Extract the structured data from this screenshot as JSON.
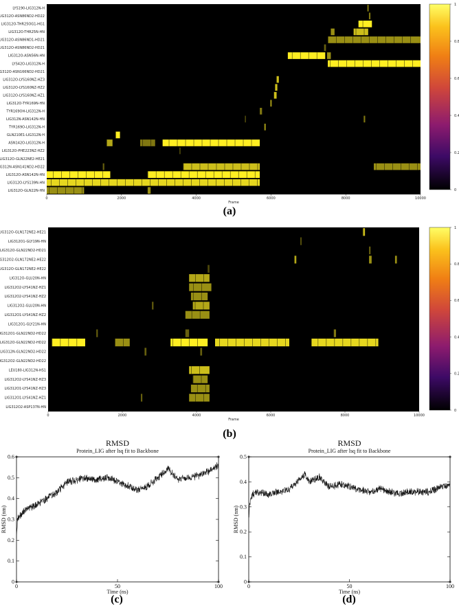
{
  "colors": {
    "background": "#000000",
    "band": "#ffee22",
    "rmsd_line": "#111111",
    "colorbar_stops": [
      "#000000",
      "#3d0a66",
      "#8d1b6e",
      "#d0473a",
      "#f07f14",
      "#fbc21c",
      "#ffff66"
    ]
  },
  "panel_labels": [
    "(a)",
    "(b)",
    "(c)",
    "(d)"
  ],
  "chart_data": [
    {
      "type": "heatmap",
      "panel": "(a)",
      "xlabel": "Frame",
      "xlim": [
        0,
        10000
      ],
      "xticks": [
        0,
        2000,
        4000,
        6000,
        8000,
        10000
      ],
      "colorbar": {
        "range": [
          0,
          1
        ],
        "ticks": [
          "0",
          "0.2",
          "0.4",
          "0.6",
          "0.8",
          "1"
        ]
      },
      "rows": [
        {
          "name": "LYS190-LIG312N-H",
          "segments": [
            [
              8580,
              8610,
              0.6
            ]
          ]
        },
        {
          "name": "LIG312O-ASN86ND2-HD22",
          "segments": [
            [
              8620,
              8660,
              0.5
            ]
          ]
        },
        {
          "name": "LIG312O-THR25OG1-HG1",
          "segments": [
            [
              8340,
              8700,
              1.0
            ]
          ]
        },
        {
          "name": "LIG312O-THR25N-HN",
          "segments": [
            [
              8210,
              8600,
              0.8
            ],
            [
              7600,
              7700,
              0.6
            ]
          ]
        },
        {
          "name": "LIG312O-ASN86ND1-HD21",
          "segments": [
            [
              7520,
              10000,
              0.6
            ]
          ]
        },
        {
          "name": "LIG312O-ASN86ND2-HD21",
          "segments": [
            [
              7420,
              7470,
              0.4
            ]
          ]
        },
        {
          "name": "LIG312O-ASN56N-HN",
          "segments": [
            [
              6450,
              7450,
              1.0
            ],
            [
              7500,
              7600,
              0.6
            ]
          ]
        },
        {
          "name": "LYS42O-LIG312N-H",
          "segments": [
            [
              7520,
              10000,
              1.0
            ]
          ]
        },
        {
          "name": "LIG312O-ASN166ND2-HD21",
          "segments": []
        },
        {
          "name": "LIG312O-LYS160NZ-HZ3",
          "segments": [
            [
              6150,
              6210,
              0.8
            ]
          ]
        },
        {
          "name": "LIG312O-LYS160NZ-HZ2",
          "segments": [
            [
              6110,
              6170,
              0.8
            ]
          ]
        },
        {
          "name": "LIG312O-LYS160NZ-HZ1",
          "segments": [
            [
              6080,
              6150,
              0.8
            ]
          ]
        },
        {
          "name": "LIG312O-TYR169N-HN",
          "segments": [
            [
              5980,
              6020,
              0.6
            ]
          ]
        },
        {
          "name": "TYR169OH-LIG312N-H",
          "segments": [
            [
              5700,
              5760,
              0.5
            ]
          ]
        },
        {
          "name": "LIG312N-ASN142N-HN",
          "segments": [
            [
              8480,
              8520,
              0.5
            ],
            [
              5300,
              5330,
              0.3
            ]
          ]
        },
        {
          "name": "TYR169O-LIG312N-H",
          "segments": [
            [
              5820,
              5860,
              0.6
            ]
          ]
        },
        {
          "name": "GLN210E1-LIG312N-H",
          "segments": [
            [
              1840,
              1960,
              1.0
            ]
          ]
        },
        {
          "name": "ASN142O-LIG312N-H",
          "segments": [
            [
              3100,
              5700,
              1.0
            ],
            [
              1600,
              1760,
              0.7
            ],
            [
              2500,
              2900,
              0.5
            ]
          ]
        },
        {
          "name": "LIG312O-PHE223NZ-HZ2",
          "segments": [
            [
              3550,
              3580,
              0.3
            ]
          ]
        },
        {
          "name": "LIG312O-GLN22NE2-HE21",
          "segments": []
        },
        {
          "name": "LIG312N-ASN141ND2-HD22",
          "segments": [
            [
              3650,
              5700,
              0.8
            ],
            [
              8750,
              10000,
              0.6
            ],
            [
              1500,
              1540,
              0.4
            ]
          ]
        },
        {
          "name": "LIG312O-ASN142N-HN",
          "segments": [
            [
              0,
              1700,
              1.0
            ],
            [
              2700,
              5700,
              1.0
            ]
          ]
        },
        {
          "name": "LIG312O-LYS139N-HN",
          "segments": [
            [
              0,
              5700,
              0.9
            ]
          ]
        },
        {
          "name": "LIG312O-GLN22N-HN",
          "segments": [
            [
              0,
              1000,
              0.6
            ],
            [
              2700,
              2780,
              0.6
            ]
          ]
        }
      ]
    },
    {
      "type": "heatmap",
      "panel": "(b)",
      "xlabel": "Frame",
      "xlim": [
        0,
        10000
      ],
      "xticks": [
        0,
        2000,
        4000,
        6000,
        8000,
        10000
      ],
      "colorbar": {
        "range": [
          0,
          1
        ],
        "ticks": [
          "0",
          "0.2",
          "0.4",
          "0.6",
          "0.8",
          "1"
        ]
      },
      "rows": [
        {
          "name": "LIG312O-GLN172NE2-HE21",
          "segments": [
            [
              8480,
              8540,
              0.8
            ]
          ]
        },
        {
          "name": "LIG312O1-GLY19N-HN",
          "segments": [
            [
              6800,
              6830,
              0.4
            ]
          ]
        },
        {
          "name": "LIG312O-GLN22ND2-HD21",
          "segments": [
            [
              8650,
              8690,
              0.4
            ]
          ]
        },
        {
          "name": "LIG312O2-GLN172NE2-HE22",
          "segments": [
            [
              6640,
              6690,
              0.7
            ],
            [
              8650,
              8720,
              0.6
            ],
            [
              9350,
              9400,
              0.6
            ]
          ]
        },
        {
          "name": "LIG312O-GLN172NE2-HE22",
          "segments": [
            [
              4300,
              4350,
              0.3
            ]
          ]
        },
        {
          "name": "LIG312O-GLU20N-HN",
          "segments": [
            [
              3800,
              4350,
              0.7
            ]
          ]
        },
        {
          "name": "LIG312O2-LYS41NZ-HZ1",
          "segments": [
            [
              3800,
              4400,
              0.6
            ]
          ]
        },
        {
          "name": "LIG312O2-LYS41NZ-HZ2",
          "segments": [
            [
              3850,
              4300,
              0.6
            ]
          ]
        },
        {
          "name": "LIG312O2-GLU20N-HN",
          "segments": [
            [
              2800,
              2840,
              0.4
            ],
            [
              3900,
              4350,
              0.7
            ]
          ]
        },
        {
          "name": "LIG312O1-LYS41NZ-HZ2",
          "segments": [
            [
              3700,
              4350,
              0.6
            ]
          ]
        },
        {
          "name": "LIG312O1-GLY21N-HN",
          "segments": []
        },
        {
          "name": "LIG312O1-GLN22ND2-HD22",
          "segments": [
            [
              1300,
              1340,
              0.4
            ],
            [
              3700,
              3800,
              0.4
            ],
            [
              7700,
              7760,
              0.5
            ]
          ]
        },
        {
          "name": "LIG312O-GLN22ND2-HD22",
          "segments": [
            [
              100,
              1000,
              1.0
            ],
            [
              3300,
              4300,
              1.0
            ],
            [
              4500,
              6500,
              0.9
            ],
            [
              7100,
              8900,
              0.9
            ],
            [
              1800,
              2200,
              0.6
            ]
          ]
        },
        {
          "name": "LIG312N-GLN22ND2-HD22",
          "segments": [
            [
              2600,
              2650,
              0.4
            ],
            [
              4100,
              4150,
              0.4
            ]
          ]
        },
        {
          "name": "LIG312O2-GLN22ND2-HD22",
          "segments": []
        },
        {
          "name": "LEU180-LIG312N-HS1",
          "segments": [
            [
              3800,
              4350,
              0.8
            ]
          ]
        },
        {
          "name": "LIG312O2-LYS41NZ-HZ3",
          "segments": [
            [
              3900,
              4300,
              0.6
            ]
          ]
        },
        {
          "name": "LIG312O1-LYS41NZ-HZ3",
          "segments": [
            [
              3850,
              4350,
              0.6
            ]
          ]
        },
        {
          "name": "LIG312O1-LYS41NZ-HZ1",
          "segments": [
            [
              2500,
              2540,
              0.4
            ],
            [
              3800,
              4350,
              0.6
            ]
          ]
        },
        {
          "name": "LIG312O2-ASP137N-HN",
          "segments": []
        }
      ]
    },
    {
      "type": "line",
      "panel": "(c)",
      "title": "RMSD",
      "subtitle": "Protein_LIG after lsq fit to Backbone",
      "xlabel": "Time (ns)",
      "ylabel": "RMSD (nm)",
      "xlim": [
        0,
        100
      ],
      "ylim": [
        0,
        0.6
      ],
      "xticks": [
        "0",
        "50",
        "100"
      ],
      "yticks": [
        "0",
        "0.1",
        "0.2",
        "0.3",
        "0.4",
        "0.5",
        "0.6"
      ],
      "x": [
        0,
        0.5,
        1,
        2,
        5,
        10,
        15,
        20,
        25,
        30,
        35,
        40,
        45,
        50,
        55,
        60,
        65,
        70,
        75,
        80,
        85,
        90,
        95,
        100
      ],
      "y": [
        0.22,
        0.3,
        0.31,
        0.32,
        0.35,
        0.37,
        0.4,
        0.43,
        0.48,
        0.49,
        0.5,
        0.49,
        0.5,
        0.48,
        0.46,
        0.44,
        0.46,
        0.5,
        0.54,
        0.49,
        0.5,
        0.51,
        0.53,
        0.56
      ]
    },
    {
      "type": "line",
      "panel": "(d)",
      "title": "RMSD",
      "subtitle": "Protein_LIG after lsq fit to Backbone",
      "xlabel": "Time (ns)",
      "ylabel": "RMSD (nm)",
      "xlim": [
        0,
        100
      ],
      "ylim": [
        0,
        0.5
      ],
      "xticks": [
        "0",
        "50",
        "100"
      ],
      "yticks": [
        "0",
        "0.1",
        "0.2",
        "0.3",
        "0.4",
        "0.5"
      ],
      "x": [
        0,
        0.5,
        1,
        2,
        5,
        10,
        15,
        20,
        25,
        28,
        30,
        35,
        40,
        45,
        50,
        55,
        60,
        65,
        70,
        75,
        80,
        85,
        90,
        95,
        100
      ],
      "y": [
        0.26,
        0.31,
        0.33,
        0.35,
        0.36,
        0.35,
        0.36,
        0.37,
        0.41,
        0.43,
        0.4,
        0.42,
        0.38,
        0.39,
        0.38,
        0.37,
        0.36,
        0.37,
        0.36,
        0.35,
        0.36,
        0.36,
        0.36,
        0.38,
        0.39
      ]
    }
  ]
}
